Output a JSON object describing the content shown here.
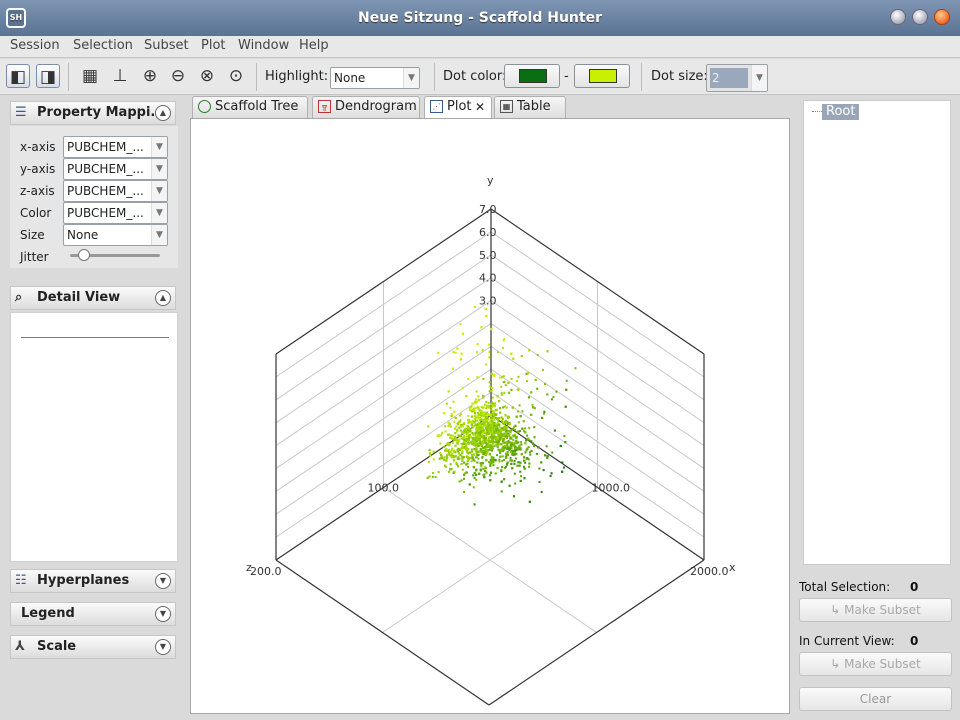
{
  "window": {
    "title": "Neue Sitzung - Scaffold Hunter",
    "app_icon": "SH"
  },
  "menu": [
    "Session",
    "Selection",
    "Subset",
    "Plot",
    "Window",
    "Help"
  ],
  "toolbar": {
    "highlight_label": "Highlight:",
    "highlight_value": "None",
    "dot_color_label": "Dot color:",
    "dot_color_sep": "-",
    "dot_color_from": "#0a6e12",
    "dot_color_to": "#c8f000",
    "dot_size_label": "Dot size:",
    "dot_size_value": "2"
  },
  "left": {
    "property_mapping": {
      "title": "Property Mappi...",
      "rows": [
        {
          "label": "x-axis",
          "value": "PUBCHEM_..."
        },
        {
          "label": "y-axis",
          "value": "PUBCHEM_..."
        },
        {
          "label": "z-axis",
          "value": "PUBCHEM_..."
        },
        {
          "label": "Color",
          "value": "PUBCHEM_..."
        },
        {
          "label": "Size",
          "value": "None"
        }
      ],
      "jitter_label": "Jitter",
      "jitter_level": 0.15
    },
    "detail_view": {
      "title": "Detail View"
    },
    "hyperplanes": {
      "title": "Hyperplanes"
    },
    "legend": {
      "title": "Legend"
    },
    "scale": {
      "title": "Scale"
    }
  },
  "tabs": [
    "Scaffold Tree",
    "Dendrogram",
    "Plot",
    "Table"
  ],
  "tab_close": "✕",
  "active_tab": "Plot",
  "right": {
    "tree_root": "Root",
    "total_selection_label": "Total Selection:",
    "total_selection_value": "0",
    "in_view_label": "In Current View:",
    "in_view_value": "0",
    "make_subset_label": "↳ Make Subset",
    "clear_label": "Clear"
  },
  "chart_data": {
    "type": "scatter",
    "subtype": "3d",
    "axis_labels": {
      "x": "x",
      "y": "y",
      "z": "z"
    },
    "y_ticks": [
      "7.0",
      "6.0",
      "5.0",
      "4.0",
      "3.0"
    ],
    "x_ticks": [
      "1000.0",
      "2000.0"
    ],
    "z_ticks": [
      "100.0",
      "200.0"
    ],
    "grid": true,
    "color_gradient": [
      "#c8f000",
      "#0a6e12"
    ]
  }
}
